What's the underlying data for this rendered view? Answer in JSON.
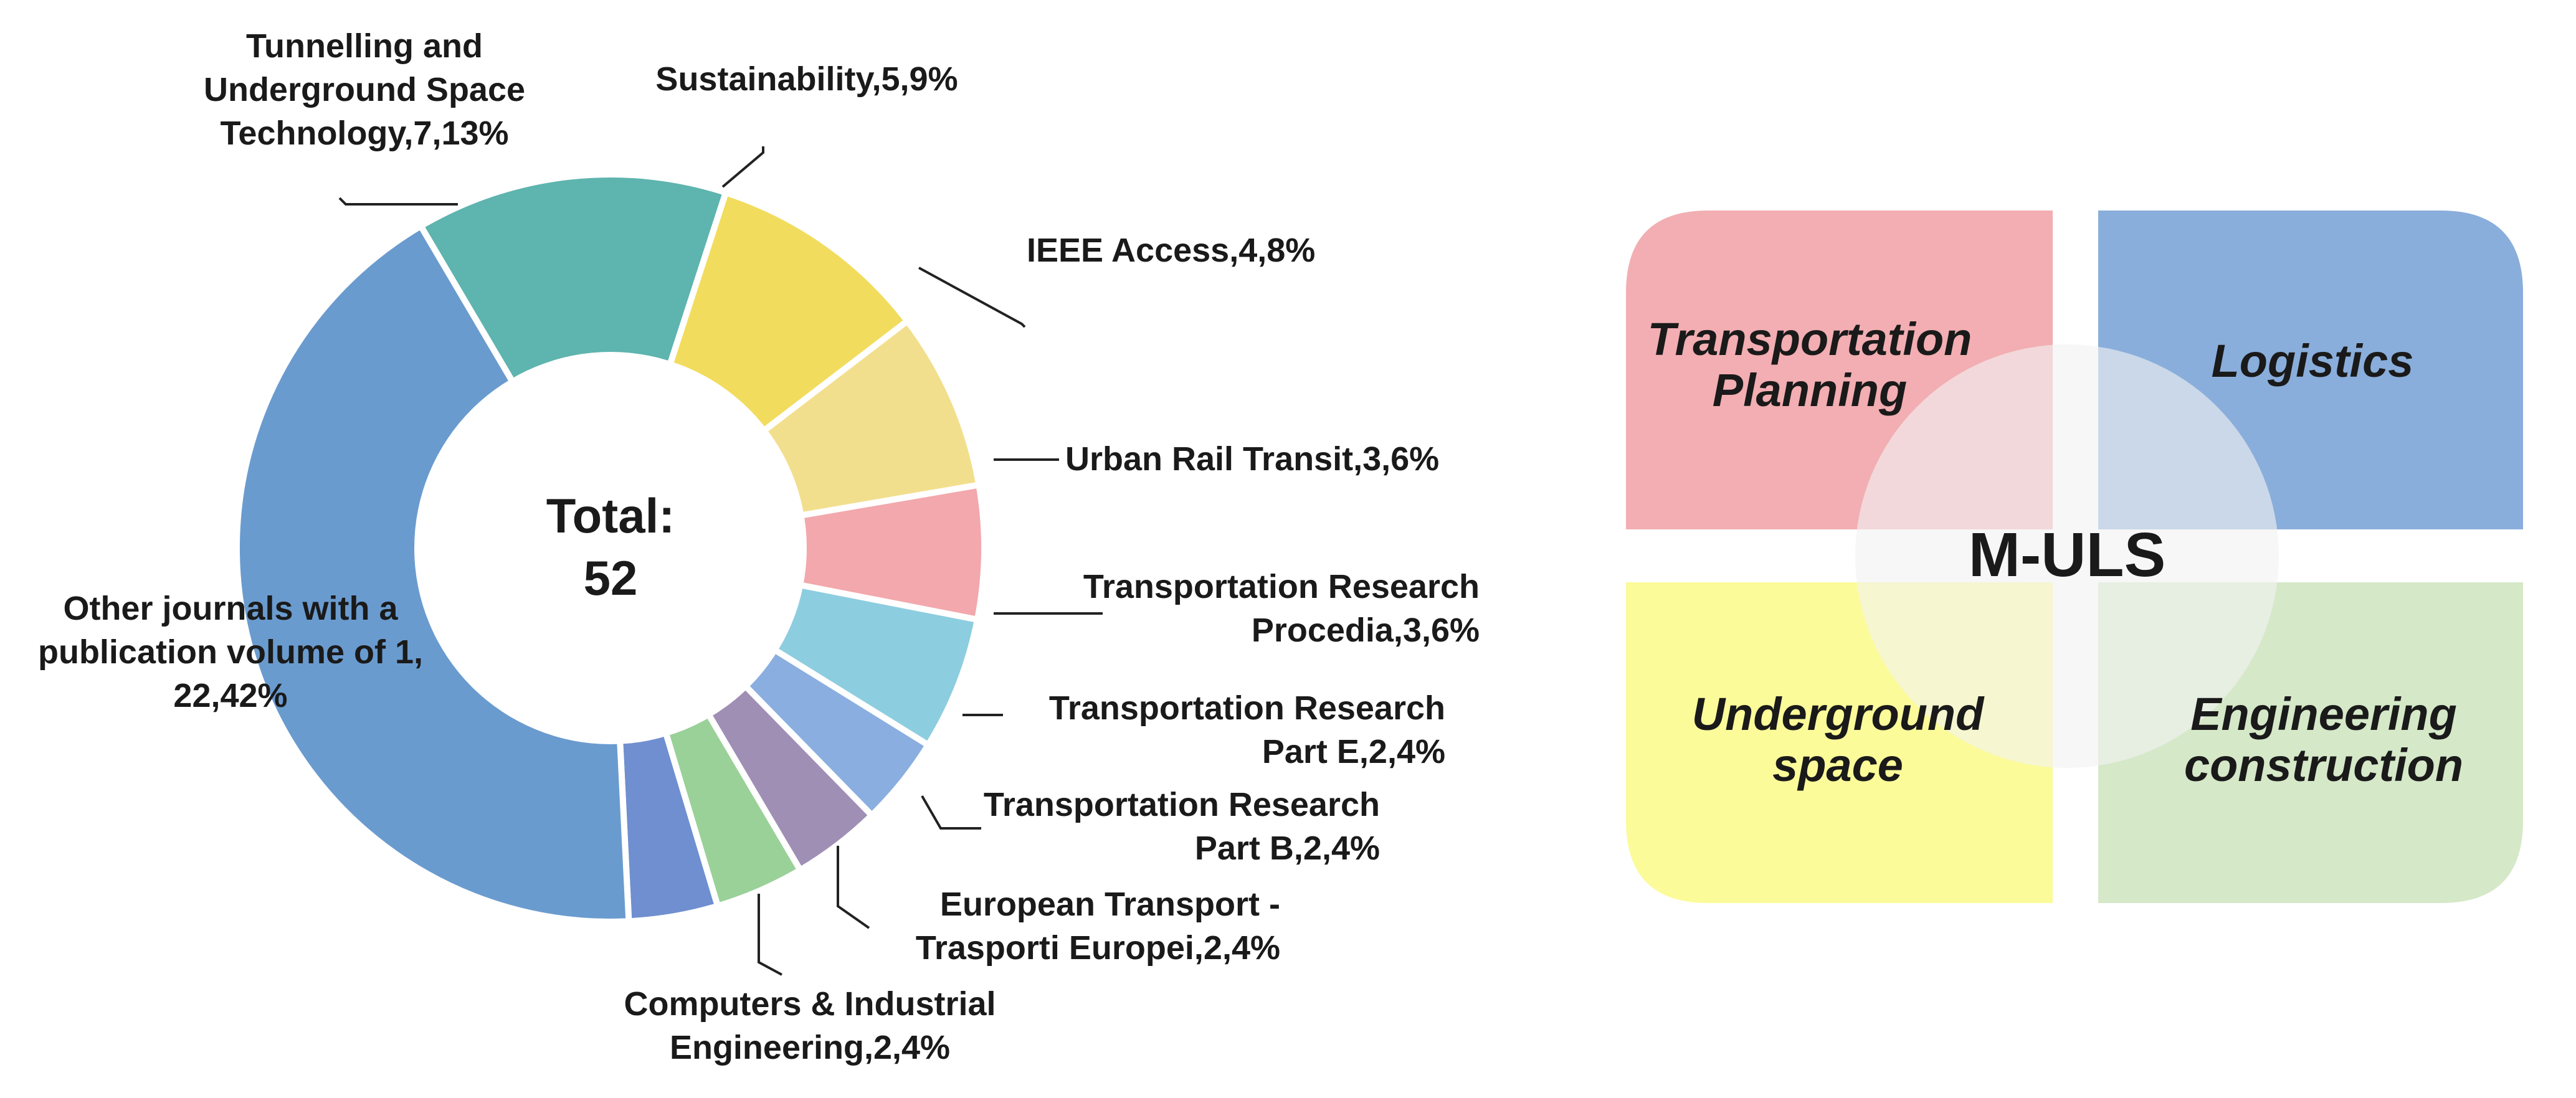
{
  "chart_data": {
    "type": "pie",
    "variant": "donut",
    "center_label": {
      "line1": "Total:",
      "line2": "52"
    },
    "total": 52,
    "slices": [
      {
        "name": "Tunnelling and Underground Space Technology",
        "value": 7,
        "percent": 13,
        "color": "#5eb4ae",
        "label_lines": [
          "Tunnelling and",
          "Underground Space",
          "Technology,7,13%"
        ]
      },
      {
        "name": "Sustainability",
        "value": 5,
        "percent": 9,
        "color": "#f2dc5e",
        "label_lines": [
          "Sustainability,5,9%"
        ]
      },
      {
        "name": "IEEE Access",
        "value": 4,
        "percent": 8,
        "color": "#f2df8e",
        "label_lines": [
          "IEEE Access,4,8%"
        ]
      },
      {
        "name": "Urban Rail Transit",
        "value": 3,
        "percent": 6,
        "color": "#f2a8ac",
        "label_lines": [
          "Urban Rail Transit,3,6%"
        ]
      },
      {
        "name": "Transportation Research Procedia",
        "value": 3,
        "percent": 6,
        "color": "#8dcde0",
        "label_lines": [
          "Transportation Research",
          "Procedia,3,6%"
        ]
      },
      {
        "name": "Transportation Research Part E",
        "value": 2,
        "percent": 4,
        "color": "#8aaee0",
        "label_lines": [
          "Transportation Research",
          "Part E,2,4%"
        ]
      },
      {
        "name": "Transportation Research Part B",
        "value": 2,
        "percent": 4,
        "color": "#9f8fb5",
        "label_lines": [
          "Transportation Research",
          "Part B,2,4%"
        ]
      },
      {
        "name": "European Transport - Trasporti Europei",
        "value": 2,
        "percent": 4,
        "color": "#9ad198",
        "label_lines": [
          "European Transport -",
          "Trasporti Europei,2,4%"
        ]
      },
      {
        "name": "Computers & Industrial Engineering",
        "value": 2,
        "percent": 4,
        "color": "#6f8fd0",
        "label_lines": [
          "Computers & Industrial",
          "Engineering,2,4%"
        ]
      },
      {
        "name": "Other journals with a publication volume of 1",
        "value": 22,
        "percent": 42,
        "color": "#6a9bcf",
        "label_lines": [
          "Other journals with a",
          "publication volume of 1,",
          "22,42%"
        ]
      }
    ]
  },
  "diagram": {
    "hub": "M-ULS",
    "quadrants": [
      {
        "id": "transportation-planning",
        "lines": [
          "Transportation",
          "Planning"
        ],
        "color": "#f2aeb2"
      },
      {
        "id": "logistics",
        "lines": [
          "Logistics"
        ],
        "color": "#8aaedb"
      },
      {
        "id": "underground-space",
        "lines": [
          "Underground",
          "space"
        ],
        "color": "#fbfb9a"
      },
      {
        "id": "engineering-construction",
        "lines": [
          "Engineering",
          "construction"
        ],
        "color": "#d5e8c8"
      }
    ]
  }
}
